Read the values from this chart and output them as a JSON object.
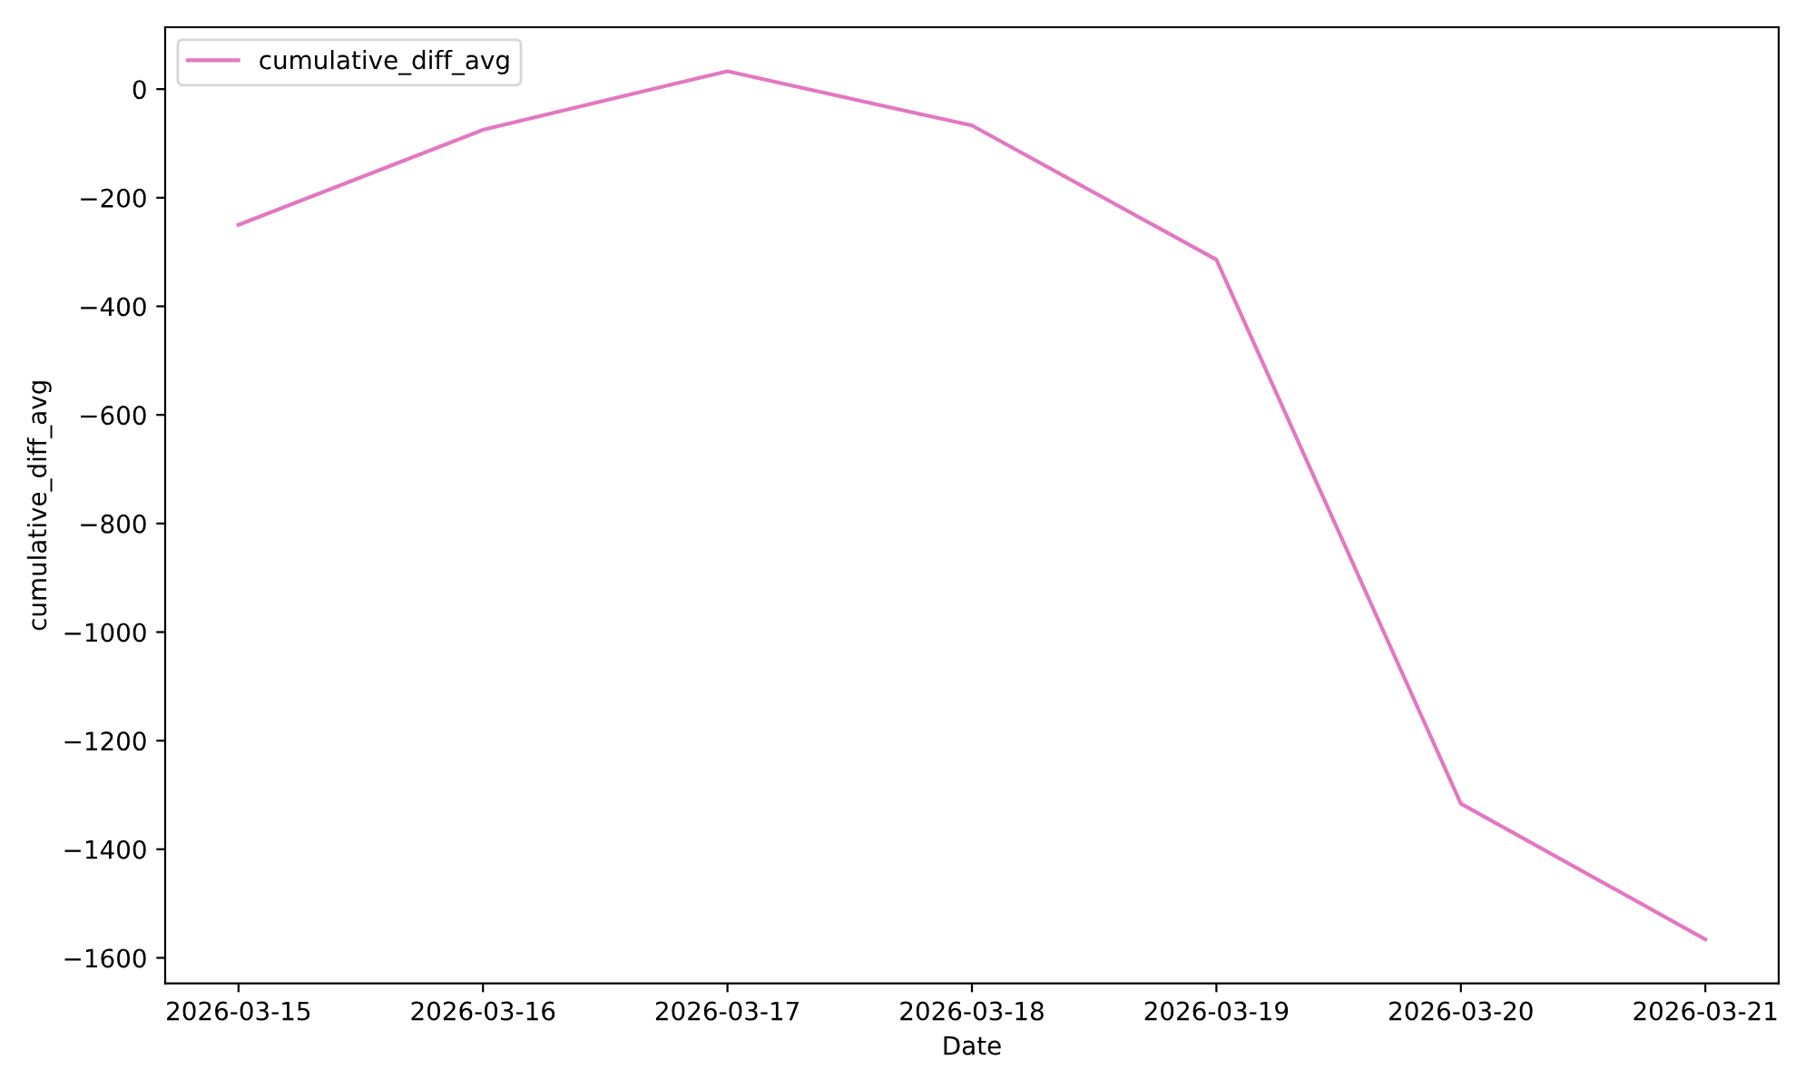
{
  "chart_data": {
    "type": "line",
    "xlabel": "Date",
    "ylabel": "cumulative_diff_avg",
    "x": [
      "2026-03-15",
      "2026-03-16",
      "2026-03-17",
      "2026-03-18",
      "2026-03-19",
      "2026-03-20",
      "2026-03-21"
    ],
    "series": [
      {
        "name": "cumulative_diff_avg",
        "color": "#e377c2",
        "values": [
          -250,
          -75,
          33,
          -67,
          -314,
          -1316,
          -1566
        ]
      }
    ],
    "xlim": [
      "2026-03-14T16:48",
      "2026-03-21T07:12"
    ],
    "xticks": [
      "2026-03-15",
      "2026-03-16",
      "2026-03-17",
      "2026-03-18",
      "2026-03-19",
      "2026-03-20",
      "2026-03-21"
    ],
    "ylim": [
      -1647,
      114
    ],
    "yticks": [
      {
        "value": -1600,
        "label": "−1600"
      },
      {
        "value": -1400,
        "label": "−1400"
      },
      {
        "value": -1200,
        "label": "−1200"
      },
      {
        "value": -1000,
        "label": "−1000"
      },
      {
        "value": -800,
        "label": "−800"
      },
      {
        "value": -600,
        "label": "−600"
      },
      {
        "value": -400,
        "label": "−400"
      },
      {
        "value": -200,
        "label": "−200"
      },
      {
        "value": 0,
        "label": "0"
      }
    ],
    "legend": "top left",
    "grid": false,
    "marker": "none",
    "line_style": "solid"
  }
}
